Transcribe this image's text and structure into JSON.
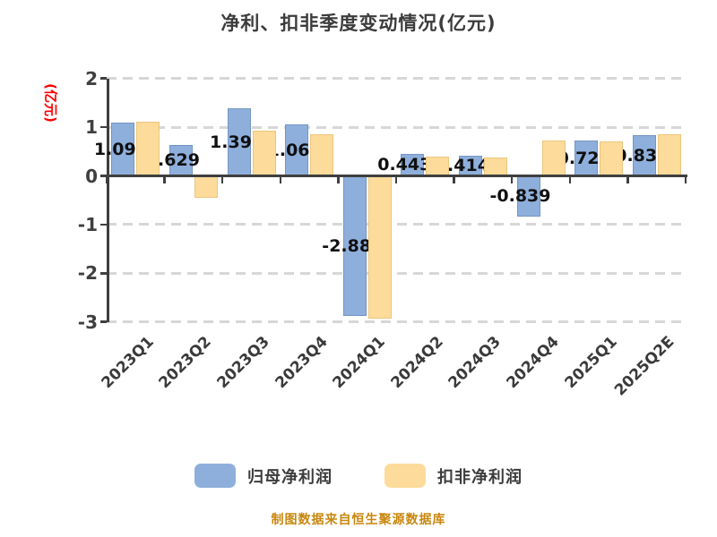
{
  "title": "净利、扣非季度变动情况(亿元)",
  "y_axis": {
    "label": "(亿元)",
    "label_color": "#ff0000",
    "tick_labels": [
      "2",
      "1",
      "0",
      "-1",
      "-2",
      "-3"
    ]
  },
  "chart_data": {
    "type": "bar",
    "title": "净利、扣非季度变动情况(亿元)",
    "categories": [
      "2023Q1",
      "2023Q2",
      "2023Q3",
      "2023Q4",
      "2024Q1",
      "2024Q2",
      "2024Q3",
      "2024Q4",
      "2025Q1",
      "2025Q2E"
    ],
    "series": [
      {
        "name": "归母净利润",
        "color": "#8EAFDC",
        "edge_color": "rgba(70,100,150,0.35)",
        "values": [
          1.09,
          0.629,
          1.39,
          1.06,
          -2.88,
          0.443,
          0.414,
          -0.839,
          0.72,
          0.83
        ],
        "labels": [
          "1.09",
          "0.629",
          "1.39",
          "1.06",
          "-2.88",
          "0.443",
          "0.414",
          "-0.839",
          "0.72",
          "0.83"
        ]
      },
      {
        "name": "扣非净利润",
        "color": "#FCDB9B",
        "edge_color": "rgba(205,160,70,0.35)",
        "values": [
          1.11,
          -0.45,
          0.93,
          0.85,
          -2.93,
          0.4,
          0.38,
          0.72,
          0.7,
          0.86
        ],
        "labels": []
      }
    ],
    "ylabel": "(亿元)",
    "ylim": [
      -3,
      2
    ],
    "yticks": [
      2,
      1,
      0,
      -1,
      -2,
      -3
    ],
    "grid": "horizontal-dashed",
    "legend_position": "bottom"
  },
  "legend": {
    "items": [
      {
        "label": "归母净利润",
        "color": "#8EAFDC"
      },
      {
        "label": "扣非净利润",
        "color": "#FCDB9B"
      }
    ]
  },
  "footer": {
    "text": "制图数据来自恒生聚源数据库",
    "color": "#C8870E"
  }
}
